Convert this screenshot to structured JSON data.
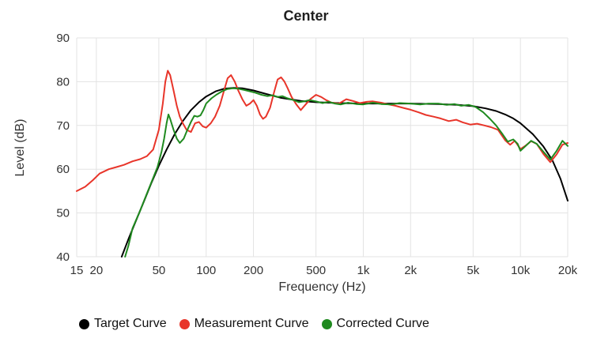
{
  "chart_data": {
    "type": "line",
    "title": "Center",
    "xlabel": "Frequency (Hz)",
    "ylabel": "Level (dB)",
    "x_scale": "log",
    "xlim": [
      15,
      20000
    ],
    "ylim": [
      40,
      90
    ],
    "grid": true,
    "legend_position": "bottom",
    "style": {
      "background": "#ffffff",
      "grid_color": "#e3e3e3",
      "text_color": "#333333",
      "title_color": "#1f1f1f"
    },
    "x_ticks": [
      {
        "value": 15,
        "label": "15"
      },
      {
        "value": 20,
        "label": "20"
      },
      {
        "value": 50,
        "label": "50"
      },
      {
        "value": 100,
        "label": "100"
      },
      {
        "value": 200,
        "label": "200"
      },
      {
        "value": 500,
        "label": "500"
      },
      {
        "value": 1000,
        "label": "1k"
      },
      {
        "value": 2000,
        "label": "2k"
      },
      {
        "value": 5000,
        "label": "5k"
      },
      {
        "value": 10000,
        "label": "10k"
      },
      {
        "value": 20000,
        "label": "20k"
      }
    ],
    "y_ticks": [
      {
        "value": 40,
        "label": "40"
      },
      {
        "value": 50,
        "label": "50"
      },
      {
        "value": 60,
        "label": "60"
      },
      {
        "value": 70,
        "label": "70"
      },
      {
        "value": 80,
        "label": "80"
      },
      {
        "value": 90,
        "label": "90"
      }
    ],
    "series": [
      {
        "name": "Target Curve",
        "color": "#000000",
        "points": [
          [
            29,
            40
          ],
          [
            32,
            44
          ],
          [
            36,
            48.5
          ],
          [
            40,
            52.5
          ],
          [
            45,
            57
          ],
          [
            50,
            60.8
          ],
          [
            56,
            64.5
          ],
          [
            63,
            68
          ],
          [
            71,
            71
          ],
          [
            80,
            73.5
          ],
          [
            90,
            75.3
          ],
          [
            100,
            76.6
          ],
          [
            115,
            77.8
          ],
          [
            130,
            78.4
          ],
          [
            150,
            78.6
          ],
          [
            170,
            78.5
          ],
          [
            200,
            78
          ],
          [
            240,
            77.2
          ],
          [
            300,
            76.3
          ],
          [
            400,
            75.6
          ],
          [
            500,
            75.3
          ],
          [
            700,
            75.1
          ],
          [
            1000,
            75
          ],
          [
            1500,
            75
          ],
          [
            2000,
            75
          ],
          [
            3000,
            74.9
          ],
          [
            4000,
            74.7
          ],
          [
            5000,
            74.4
          ],
          [
            6000,
            73.9
          ],
          [
            7000,
            73.3
          ],
          [
            8000,
            72.5
          ],
          [
            9000,
            71.6
          ],
          [
            10000,
            70.5
          ],
          [
            12000,
            68
          ],
          [
            14000,
            65.2
          ],
          [
            16000,
            62
          ],
          [
            18000,
            57.8
          ],
          [
            20000,
            52.8
          ]
        ]
      },
      {
        "name": "Measurement Curve",
        "color": "#e8352a",
        "points": [
          [
            15,
            55
          ],
          [
            17,
            56
          ],
          [
            19,
            57.5
          ],
          [
            21,
            59
          ],
          [
            24,
            60
          ],
          [
            27,
            60.5
          ],
          [
            30,
            61
          ],
          [
            34,
            61.8
          ],
          [
            38,
            62.3
          ],
          [
            42,
            63
          ],
          [
            46,
            64.5
          ],
          [
            50,
            69
          ],
          [
            53,
            75
          ],
          [
            55,
            80
          ],
          [
            57,
            82.5
          ],
          [
            59,
            81.5
          ],
          [
            62,
            78
          ],
          [
            65,
            74.5
          ],
          [
            68,
            72
          ],
          [
            71,
            70.5
          ],
          [
            75,
            69
          ],
          [
            80,
            68.5
          ],
          [
            85,
            70.5
          ],
          [
            90,
            70.8
          ],
          [
            95,
            69.8
          ],
          [
            100,
            69.5
          ],
          [
            107,
            70.5
          ],
          [
            114,
            72
          ],
          [
            122,
            74.5
          ],
          [
            130,
            78
          ],
          [
            137,
            80.8
          ],
          [
            144,
            81.5
          ],
          [
            152,
            80
          ],
          [
            160,
            78
          ],
          [
            170,
            76
          ],
          [
            180,
            74.5
          ],
          [
            190,
            75
          ],
          [
            200,
            75.8
          ],
          [
            210,
            74.5
          ],
          [
            220,
            72.5
          ],
          [
            230,
            71.5
          ],
          [
            240,
            72
          ],
          [
            255,
            74
          ],
          [
            270,
            77.5
          ],
          [
            285,
            80.5
          ],
          [
            300,
            81
          ],
          [
            315,
            80
          ],
          [
            330,
            78.5
          ],
          [
            350,
            76.5
          ],
          [
            375,
            74.8
          ],
          [
            400,
            73.5
          ],
          [
            430,
            74.8
          ],
          [
            460,
            76
          ],
          [
            500,
            77
          ],
          [
            540,
            76.5
          ],
          [
            580,
            75.8
          ],
          [
            630,
            75.2
          ],
          [
            700,
            75
          ],
          [
            780,
            76
          ],
          [
            860,
            75.6
          ],
          [
            950,
            75.1
          ],
          [
            1050,
            75.4
          ],
          [
            1150,
            75.5
          ],
          [
            1300,
            75.2
          ],
          [
            1450,
            74.8
          ],
          [
            1600,
            74.5
          ],
          [
            1800,
            74
          ],
          [
            2000,
            73.6
          ],
          [
            2250,
            73
          ],
          [
            2500,
            72.4
          ],
          [
            2800,
            72
          ],
          [
            3100,
            71.6
          ],
          [
            3500,
            71
          ],
          [
            3900,
            71.3
          ],
          [
            4300,
            70.7
          ],
          [
            4800,
            70.2
          ],
          [
            5300,
            70.4
          ],
          [
            5900,
            70
          ],
          [
            6500,
            69.6
          ],
          [
            7200,
            69
          ],
          [
            8000,
            66.6
          ],
          [
            8600,
            65.6
          ],
          [
            9200,
            66.5
          ],
          [
            10000,
            64.6
          ],
          [
            10800,
            65.4
          ],
          [
            11700,
            66.4
          ],
          [
            12700,
            65.8
          ],
          [
            14000,
            63.5
          ],
          [
            15500,
            61.6
          ],
          [
            17000,
            63.4
          ],
          [
            18500,
            65.6
          ],
          [
            20000,
            66
          ]
        ]
      },
      {
        "name": "Corrected Curve",
        "color": "#1f8a1f",
        "points": [
          [
            30.5,
            40
          ],
          [
            32,
            42.5
          ],
          [
            34,
            46.5
          ],
          [
            38,
            50.5
          ],
          [
            42,
            54.5
          ],
          [
            46,
            58
          ],
          [
            49,
            60.5
          ],
          [
            52,
            64
          ],
          [
            54,
            67
          ],
          [
            56,
            70.5
          ],
          [
            57.5,
            72.5
          ],
          [
            59,
            71.5
          ],
          [
            62,
            69
          ],
          [
            65,
            67
          ],
          [
            68,
            66
          ],
          [
            72,
            67
          ],
          [
            76,
            69
          ],
          [
            80,
            70.8
          ],
          [
            84,
            72.2
          ],
          [
            88,
            72
          ],
          [
            92,
            72.3
          ],
          [
            96,
            73.5
          ],
          [
            100,
            75
          ],
          [
            108,
            76.2
          ],
          [
            116,
            77
          ],
          [
            126,
            77.8
          ],
          [
            136,
            78.3
          ],
          [
            148,
            78.5
          ],
          [
            160,
            78.4
          ],
          [
            175,
            78.1
          ],
          [
            190,
            77.8
          ],
          [
            205,
            77.5
          ],
          [
            225,
            77
          ],
          [
            245,
            76.7
          ],
          [
            265,
            76.9
          ],
          [
            285,
            76.5
          ],
          [
            305,
            76.7
          ],
          [
            330,
            76.2
          ],
          [
            360,
            75.8
          ],
          [
            390,
            75.3
          ],
          [
            420,
            75.5
          ],
          [
            455,
            75.8
          ],
          [
            500,
            75.5
          ],
          [
            550,
            75.1
          ],
          [
            600,
            75.4
          ],
          [
            660,
            75
          ],
          [
            720,
            74.8
          ],
          [
            800,
            75.2
          ],
          [
            900,
            74.9
          ],
          [
            1000,
            74.8
          ],
          [
            1150,
            75.2
          ],
          [
            1300,
            74.9
          ],
          [
            1500,
            74.8
          ],
          [
            1700,
            75.1
          ],
          [
            2000,
            75
          ],
          [
            2300,
            74.8
          ],
          [
            2600,
            75
          ],
          [
            3000,
            75
          ],
          [
            3400,
            74.7
          ],
          [
            3800,
            74.9
          ],
          [
            4200,
            74.5
          ],
          [
            4700,
            74.7
          ],
          [
            5200,
            74.2
          ],
          [
            5800,
            73
          ],
          [
            6400,
            71.5
          ],
          [
            7000,
            70
          ],
          [
            7700,
            68
          ],
          [
            8300,
            66.3
          ],
          [
            9000,
            66.8
          ],
          [
            9600,
            65.8
          ],
          [
            10000,
            64.2
          ],
          [
            10800,
            65.3
          ],
          [
            11700,
            66.5
          ],
          [
            12700,
            65.8
          ],
          [
            14000,
            64
          ],
          [
            15500,
            62.2
          ],
          [
            17000,
            64.2
          ],
          [
            18500,
            66.5
          ],
          [
            20000,
            65.3
          ]
        ]
      }
    ]
  }
}
